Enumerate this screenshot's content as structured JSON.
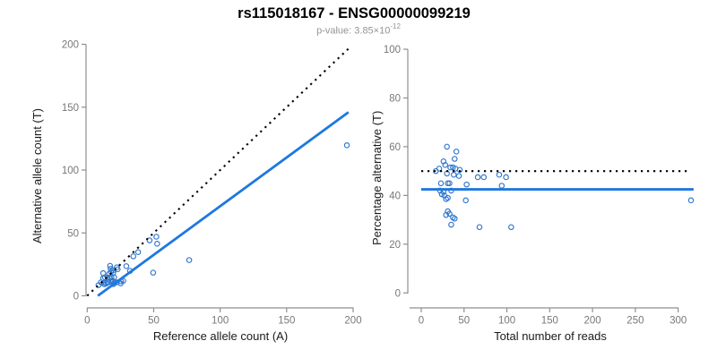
{
  "header": {
    "title": "rs115018167 - ENSG00000099219",
    "pvalue_base": "p-value: 3.85×10",
    "pvalue_exponent": "-12"
  },
  "colors": {
    "line_blue": "#1e78e0",
    "point_blue": "#3178cd",
    "dashed_black": "#000000",
    "axis_gray": "#8f8f8f",
    "tick_label_gray": "#787878",
    "axis_title_black": "#1a1a1a",
    "subtitle_gray": "#949494"
  },
  "chart_data": [
    {
      "type": "scatter",
      "xlabel": "Reference allele count (A)",
      "ylabel": "Alternative allele count (T)",
      "xlim": [
        0,
        200
      ],
      "ylim": [
        0,
        200
      ],
      "xticks": [
        0,
        50,
        100,
        150,
        200
      ],
      "yticks": [
        0,
        50,
        100,
        150,
        200
      ],
      "grid": false,
      "points": [
        [
          12,
          18
        ],
        [
          17.2,
          23.8
        ],
        [
          17.6,
          21.5
        ],
        [
          12,
          14
        ],
        [
          13.3,
          14.7
        ],
        [
          10.3,
          10.7
        ],
        [
          16.5,
          17.5
        ],
        [
          17.9,
          19.1
        ],
        [
          19.6,
          20.4
        ],
        [
          22.3,
          22.7
        ],
        [
          8.5,
          8.5
        ],
        [
          15.3,
          14.7
        ],
        [
          19.6,
          18.4
        ],
        [
          22.9,
          21.1
        ],
        [
          34.7,
          31.4
        ],
        [
          38.3,
          34.7
        ],
        [
          46.9,
          44.1
        ],
        [
          52,
          47
        ],
        [
          12.7,
          10.4
        ],
        [
          17.1,
          14
        ],
        [
          18.2,
          14.9
        ],
        [
          29.4,
          23.6
        ],
        [
          52.6,
          41.4
        ],
        [
          12.8,
          9.2
        ],
        [
          15.2,
          10.8
        ],
        [
          20.3,
          14.7
        ],
        [
          14.3,
          9.7
        ],
        [
          16.2,
          10.8
        ],
        [
          18.9,
          12.1
        ],
        [
          17.8,
          11.2
        ],
        [
          32.2,
          19.8
        ],
        [
          20.6,
          10.4
        ],
        [
          22.3,
          10.7
        ],
        [
          19.7,
          9.3
        ],
        [
          25.5,
          11.5
        ],
        [
          27.1,
          11.9
        ],
        [
          25.2,
          9.8
        ],
        [
          49.6,
          18.4
        ],
        [
          76.7,
          28.4
        ],
        [
          195.3,
          119.7
        ]
      ],
      "lines": [
        {
          "name": "identity-line",
          "style": "dashed",
          "x1": 0,
          "y1": 0,
          "x2": 197,
          "y2": 197
        },
        {
          "name": "fit-line",
          "style": "solid",
          "x1": 8,
          "y1": 0,
          "x2": 196.5,
          "y2": 146
        }
      ]
    },
    {
      "type": "scatter",
      "xlabel": "Total number of reads",
      "ylabel": "Percentage alternative (T)",
      "xlim": [
        0,
        318
      ],
      "ylim": [
        0,
        100
      ],
      "xticks": [
        0,
        50,
        100,
        150,
        200,
        250,
        300
      ],
      "yticks": [
        0,
        20,
        40,
        60,
        80,
        100
      ],
      "grid": false,
      "points": [
        [
          30,
          60
        ],
        [
          41,
          58
        ],
        [
          39,
          55
        ],
        [
          26,
          54
        ],
        [
          28,
          52.5
        ],
        [
          21,
          51
        ],
        [
          34,
          51.5
        ],
        [
          37,
          51.5
        ],
        [
          40,
          51
        ],
        [
          45,
          50.5
        ],
        [
          17,
          50
        ],
        [
          30,
          49
        ],
        [
          38,
          48.5
        ],
        [
          44,
          48
        ],
        [
          66,
          47.5
        ],
        [
          73,
          47.5
        ],
        [
          91,
          48.5
        ],
        [
          99,
          47.5
        ],
        [
          23,
          45
        ],
        [
          31,
          45
        ],
        [
          33,
          45
        ],
        [
          53,
          44.5
        ],
        [
          94,
          44
        ],
        [
          22,
          42
        ],
        [
          26,
          41.5
        ],
        [
          35,
          42
        ],
        [
          24,
          40.5
        ],
        [
          27,
          40
        ],
        [
          31,
          39
        ],
        [
          29,
          38.5
        ],
        [
          52,
          38
        ],
        [
          31,
          33.5
        ],
        [
          33,
          32.5
        ],
        [
          29,
          32
        ],
        [
          37,
          31
        ],
        [
          39,
          30.5
        ],
        [
          35,
          28
        ],
        [
          68,
          27
        ],
        [
          105,
          27
        ],
        [
          315,
          38
        ]
      ],
      "lines": [
        {
          "name": "fifty-percent-line",
          "style": "dashed",
          "x1": 0,
          "y1": 50,
          "x2": 314,
          "y2": 50
        },
        {
          "name": "mean-percentage-line",
          "style": "solid",
          "x1": 0,
          "y1": 42.5,
          "x2": 318,
          "y2": 42.5
        }
      ]
    }
  ]
}
